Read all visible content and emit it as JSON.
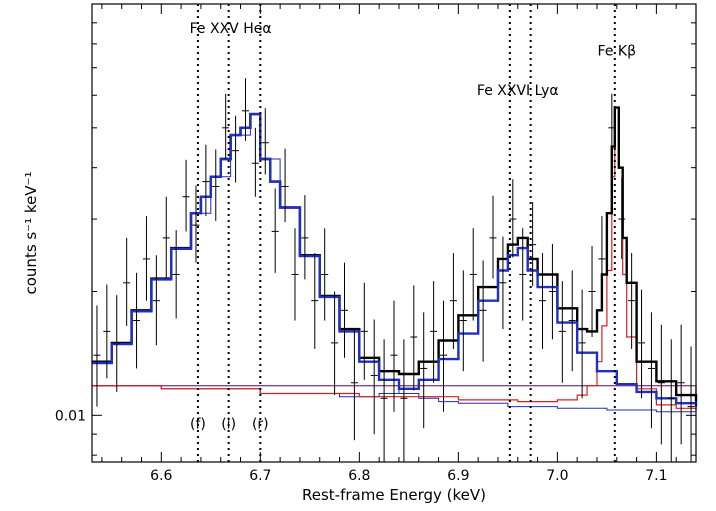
{
  "chart_data": {
    "type": "line",
    "title": "",
    "xlabel": "Rest-frame Energy (keV)",
    "ylabel": "counts s⁻¹ keV⁻¹",
    "xlim": [
      6.53,
      7.14
    ],
    "ylim": [
      0.0077,
      0.1
    ],
    "yscale": "log",
    "xticks": [
      6.6,
      6.7,
      6.8,
      6.9,
      7.0,
      7.1
    ],
    "xtick_labels": [
      "6.6",
      "6.7",
      "6.8",
      "6.9",
      "7.0",
      "7.1"
    ],
    "yticks": [
      0.01
    ],
    "ytick_labels": [
      "0.01"
    ],
    "grid": false,
    "colors": {
      "total": "#000000",
      "blue": "#1f2fbf",
      "red": "#d62020",
      "purple": "#8a4a80",
      "data": "#000000"
    },
    "annotations": [
      {
        "text": "Fe XXV Heα",
        "x": 6.67,
        "y": 0.085
      },
      {
        "text": "Fe XXVI Lyα",
        "x": 6.96,
        "y": 0.06
      },
      {
        "text": "Fe Kβ",
        "x": 7.06,
        "y": 0.075
      },
      {
        "text": "(f)",
        "x": 6.637,
        "y": 0.0093
      },
      {
        "text": "(i)",
        "x": 6.668,
        "y": 0.0093
      },
      {
        "text": "(r)",
        "x": 6.7,
        "y": 0.0093
      }
    ],
    "vlines": [
      6.637,
      6.668,
      6.7,
      6.952,
      6.973,
      7.058
    ],
    "series": [
      {
        "key": "total",
        "x": [
          6.53,
          6.55,
          6.57,
          6.59,
          6.61,
          6.63,
          6.64,
          6.65,
          6.66,
          6.67,
          6.68,
          6.69,
          6.7,
          6.71,
          6.72,
          6.74,
          6.76,
          6.78,
          6.8,
          6.82,
          6.84,
          6.86,
          6.88,
          6.9,
          6.92,
          6.94,
          6.95,
          6.96,
          6.97,
          6.98,
          7.0,
          7.02,
          7.03,
          7.04,
          7.045,
          7.05,
          7.055,
          7.058,
          7.062,
          7.066,
          7.07,
          7.08,
          7.1,
          7.12,
          7.14
        ],
        "values": [
          0.0135,
          0.015,
          0.018,
          0.0215,
          0.0255,
          0.031,
          0.034,
          0.038,
          0.042,
          0.048,
          0.05,
          0.054,
          0.042,
          0.037,
          0.032,
          0.0245,
          0.0195,
          0.0162,
          0.0138,
          0.0128,
          0.0126,
          0.0135,
          0.0152,
          0.0175,
          0.0205,
          0.024,
          0.026,
          0.027,
          0.024,
          0.022,
          0.0182,
          0.0162,
          0.016,
          0.018,
          0.022,
          0.031,
          0.045,
          0.056,
          0.04,
          0.027,
          0.021,
          0.0135,
          0.0121,
          0.0112,
          0.0108
        ]
      },
      {
        "key": "blue",
        "x": [
          6.53,
          6.55,
          6.57,
          6.59,
          6.61,
          6.63,
          6.64,
          6.65,
          6.66,
          6.67,
          6.68,
          6.69,
          6.7,
          6.71,
          6.72,
          6.74,
          6.76,
          6.78,
          6.8,
          6.82,
          6.84,
          6.86,
          6.88,
          6.9,
          6.92,
          6.94,
          6.95,
          6.96,
          6.97,
          6.98,
          7.0,
          7.02,
          7.04,
          7.06,
          7.08,
          7.1,
          7.12,
          7.14
        ],
        "values": [
          0.0134,
          0.0149,
          0.0179,
          0.0214,
          0.0254,
          0.031,
          0.034,
          0.038,
          0.042,
          0.048,
          0.05,
          0.054,
          0.042,
          0.037,
          0.032,
          0.0244,
          0.0194,
          0.016,
          0.0135,
          0.0122,
          0.0116,
          0.0122,
          0.0137,
          0.0158,
          0.019,
          0.0225,
          0.0245,
          0.0255,
          0.0225,
          0.0205,
          0.0168,
          0.0142,
          0.0128,
          0.0119,
          0.0114,
          0.011,
          0.0107,
          0.0105
        ]
      },
      {
        "key": "blue-he",
        "x": [
          6.53,
          6.55,
          6.57,
          6.59,
          6.61,
          6.63,
          6.65,
          6.67,
          6.69,
          6.7,
          6.72,
          6.74,
          6.76,
          6.78,
          6.8,
          6.82,
          6.84,
          6.86,
          6.88,
          6.9,
          6.95,
          7.0,
          7.05,
          7.1,
          7.14
        ],
        "values": [
          0.0134,
          0.0149,
          0.0179,
          0.0214,
          0.0254,
          0.031,
          0.038,
          0.048,
          0.054,
          0.042,
          0.032,
          0.0244,
          0.0194,
          0.016,
          0.0135,
          0.0122,
          0.0113,
          0.011,
          0.0108,
          0.0107,
          0.0105,
          0.0104,
          0.0103,
          0.0102,
          0.0101
        ]
      },
      {
        "key": "blue-ly",
        "x": [
          6.53,
          6.6,
          6.7,
          6.78,
          6.8,
          6.82,
          6.84,
          6.86,
          6.88,
          6.9,
          6.92,
          6.94,
          6.95,
          6.96,
          6.97,
          6.98,
          7.0,
          7.02,
          7.04,
          7.06,
          7.08,
          7.1,
          7.12,
          7.14
        ],
        "values": [
          0.0118,
          0.0116,
          0.0113,
          0.0111,
          0.0111,
          0.0113,
          0.0116,
          0.0122,
          0.0137,
          0.0158,
          0.019,
          0.0225,
          0.0245,
          0.0255,
          0.0225,
          0.0205,
          0.0168,
          0.0142,
          0.0128,
          0.0119,
          0.0114,
          0.011,
          0.0107,
          0.0105
        ]
      },
      {
        "key": "red",
        "x": [
          6.53,
          6.6,
          6.7,
          6.8,
          6.9,
          6.96,
          7.0,
          7.02,
          7.03,
          7.04,
          7.045,
          7.05,
          7.055,
          7.058,
          7.062,
          7.066,
          7.07,
          7.08,
          7.1,
          7.12,
          7.14
        ],
        "values": [
          0.0118,
          0.0116,
          0.0113,
          0.0111,
          0.0109,
          0.0108,
          0.0109,
          0.0112,
          0.0118,
          0.0135,
          0.0165,
          0.0225,
          0.038,
          0.056,
          0.04,
          0.022,
          0.0155,
          0.0116,
          0.0106,
          0.0104,
          0.0103
        ]
      },
      {
        "key": "purple",
        "x": [
          6.53,
          7.14
        ],
        "values": [
          0.0118,
          0.0103
        ]
      }
    ],
    "data_points": {
      "x": [
        6.535,
        6.545,
        6.555,
        6.565,
        6.575,
        6.585,
        6.595,
        6.605,
        6.615,
        6.625,
        6.635,
        6.645,
        6.655,
        6.665,
        6.675,
        6.685,
        6.695,
        6.705,
        6.715,
        6.725,
        6.735,
        6.745,
        6.755,
        6.765,
        6.775,
        6.785,
        6.795,
        6.805,
        6.815,
        6.825,
        6.835,
        6.845,
        6.855,
        6.865,
        6.875,
        6.885,
        6.895,
        6.905,
        6.915,
        6.925,
        6.935,
        6.945,
        6.955,
        6.965,
        6.975,
        6.985,
        6.995,
        7.005,
        7.015,
        7.025,
        7.035,
        7.045,
        7.055,
        7.065,
        7.075,
        7.085,
        7.095,
        7.105,
        7.115,
        7.125,
        7.135
      ],
      "y": [
        0.014,
        0.016,
        0.015,
        0.021,
        0.017,
        0.024,
        0.019,
        0.027,
        0.022,
        0.034,
        0.029,
        0.037,
        0.036,
        0.05,
        0.044,
        0.055,
        0.041,
        0.046,
        0.028,
        0.036,
        0.022,
        0.027,
        0.019,
        0.022,
        0.015,
        0.018,
        0.012,
        0.016,
        0.0125,
        0.011,
        0.014,
        0.011,
        0.0155,
        0.013,
        0.016,
        0.014,
        0.019,
        0.017,
        0.022,
        0.018,
        0.027,
        0.021,
        0.03,
        0.022,
        0.026,
        0.019,
        0.02,
        0.016,
        0.017,
        0.015,
        0.02,
        0.024,
        0.05,
        0.03,
        0.019,
        0.015,
        0.013,
        0.012,
        0.011,
        0.012,
        0.0105
      ],
      "err_lo": [
        0.0035,
        0.0037,
        0.0036,
        0.0045,
        0.004,
        0.005,
        0.0042,
        0.0054,
        0.0048,
        0.006,
        0.0055,
        0.0065,
        0.0063,
        0.008,
        0.0072,
        0.0085,
        0.007,
        0.0075,
        0.0058,
        0.0065,
        0.005,
        0.0056,
        0.0045,
        0.005,
        0.0038,
        0.0042,
        0.0033,
        0.0038,
        0.0035,
        0.0033,
        0.0038,
        0.0033,
        0.004,
        0.0037,
        0.004,
        0.0038,
        0.0045,
        0.0042,
        0.005,
        0.0045,
        0.0055,
        0.0048,
        0.0058,
        0.005,
        0.0054,
        0.0045,
        0.0047,
        0.004,
        0.0042,
        0.004,
        0.0045,
        0.005,
        0.008,
        0.006,
        0.0045,
        0.004,
        0.0037,
        0.0035,
        0.0033,
        0.0035,
        0.0032
      ],
      "err_hi": [
        0.0045,
        0.0048,
        0.0046,
        0.006,
        0.0052,
        0.0065,
        0.0055,
        0.007,
        0.0062,
        0.0078,
        0.0072,
        0.0085,
        0.0083,
        0.0105,
        0.0095,
        0.011,
        0.009,
        0.0098,
        0.0076,
        0.0085,
        0.0065,
        0.0073,
        0.0058,
        0.0065,
        0.005,
        0.0055,
        0.0043,
        0.005,
        0.0046,
        0.0043,
        0.005,
        0.0043,
        0.0052,
        0.0048,
        0.0052,
        0.005,
        0.0058,
        0.0055,
        0.0065,
        0.0058,
        0.0072,
        0.0062,
        0.0075,
        0.0065,
        0.007,
        0.0058,
        0.0061,
        0.0052,
        0.0055,
        0.0052,
        0.0058,
        0.0065,
        0.0105,
        0.0078,
        0.0058,
        0.0052,
        0.0048,
        0.0046,
        0.0043,
        0.0046,
        0.0042
      ]
    }
  }
}
